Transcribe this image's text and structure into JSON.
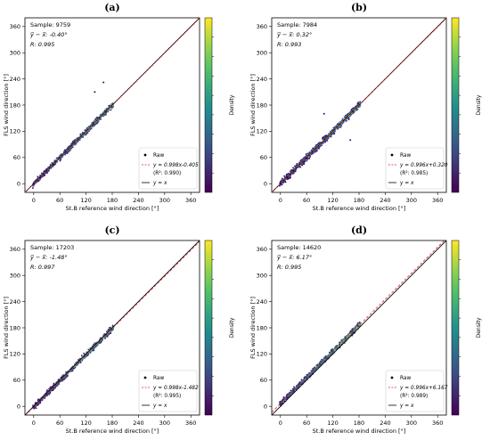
{
  "chart_data": [
    {
      "panel": "(a)",
      "type": "scatter",
      "annotations": {
        "sample": "Sample: 9759",
        "mean_diff": "y̅ − x̅: -0.40°",
        "r": "R: 0.995"
      },
      "xlabel": "St.B reference wind direction [°]",
      "ylabel": "FLS wind direction [°]",
      "colorbar_label": "Density",
      "xlim": [
        -20,
        380
      ],
      "ylim": [
        -20,
        380
      ],
      "ticks": [
        0,
        60,
        120,
        180,
        240,
        300,
        360
      ],
      "fit": {
        "slope": 0.998,
        "intercept": -0.405
      },
      "legend": [
        "Raw",
        "y = 0.998x-0.405",
        "(R²: 0.990)",
        "y = x"
      ],
      "colormap": "viridis",
      "points": [
        [
          0,
          0
        ],
        [
          15,
          14
        ],
        [
          30,
          31
        ],
        [
          45,
          44
        ],
        [
          60,
          60
        ],
        [
          75,
          74
        ],
        [
          90,
          91
        ],
        [
          105,
          104
        ],
        [
          120,
          120
        ],
        [
          135,
          134
        ],
        [
          150,
          151
        ],
        [
          165,
          164
        ],
        [
          178,
          177
        ],
        [
          140,
          210
        ],
        [
          160,
          232
        ]
      ]
    },
    {
      "panel": "(b)",
      "type": "scatter",
      "annotations": {
        "sample": "Sample: 7984",
        "mean_diff": "y̅ − x̅: 0.32°",
        "r": "R: 0.993"
      },
      "xlabel": "St.B reference wind direction [°]",
      "ylabel": "FLS wind direction [°]",
      "colorbar_label": "Density",
      "xlim": [
        -20,
        380
      ],
      "ylim": [
        -20,
        380
      ],
      "ticks": [
        0,
        60,
        120,
        180,
        240,
        300,
        360
      ],
      "fit": {
        "slope": 0.996,
        "intercept": 0.32
      },
      "legend": [
        "Raw",
        "y = 0.996x+0.320",
        "(R²: 0.985)",
        "y = x"
      ],
      "colormap": "viridis",
      "points": [
        [
          0,
          1
        ],
        [
          15,
          15
        ],
        [
          30,
          30
        ],
        [
          45,
          46
        ],
        [
          60,
          60
        ],
        [
          75,
          75
        ],
        [
          90,
          90
        ],
        [
          105,
          106
        ],
        [
          120,
          120
        ],
        [
          135,
          135
        ],
        [
          150,
          150
        ],
        [
          165,
          165
        ],
        [
          178,
          178
        ],
        [
          100,
          160
        ],
        [
          160,
          100
        ]
      ]
    },
    {
      "panel": "(c)",
      "type": "scatter",
      "annotations": {
        "sample": "Sample: 17203",
        "mean_diff": "y̅ − x̅: -1.48°",
        "r": "R: 0.997"
      },
      "xlabel": "St.B reference wind direction [°]",
      "ylabel": "FLS wind direction [°]",
      "colorbar_label": "Density",
      "xlim": [
        -20,
        380
      ],
      "ylim": [
        -20,
        380
      ],
      "ticks": [
        0,
        60,
        120,
        180,
        240,
        300,
        360
      ],
      "fit": {
        "slope": 0.998,
        "intercept": -1.482
      },
      "legend": [
        "Raw",
        "y = 0.998x-1.482",
        "(R²: 0.995)",
        "y = x"
      ],
      "colormap": "viridis",
      "points": [
        [
          0,
          -1
        ],
        [
          15,
          13
        ],
        [
          30,
          28
        ],
        [
          45,
          44
        ],
        [
          60,
          58
        ],
        [
          75,
          73
        ],
        [
          90,
          88
        ],
        [
          105,
          104
        ],
        [
          120,
          118
        ],
        [
          135,
          133
        ],
        [
          150,
          148
        ],
        [
          165,
          164
        ],
        [
          178,
          176
        ]
      ]
    },
    {
      "panel": "(d)",
      "type": "scatter",
      "annotations": {
        "sample": "Sample: 14620",
        "mean_diff": "y̅ − x̅: 6.17°",
        "r": "R: 0.995"
      },
      "xlabel": "St.B reference wind direction [°]",
      "ylabel": "FLS wind direction [°]",
      "colorbar_label": "Density",
      "xlim": [
        -20,
        380
      ],
      "ylim": [
        -20,
        380
      ],
      "ticks": [
        0,
        60,
        120,
        180,
        240,
        300,
        360
      ],
      "fit": {
        "slope": 0.996,
        "intercept": 6.167
      },
      "legend": [
        "Raw",
        "y = 0.996x+6.167",
        "(R²: 0.989)",
        "y = x"
      ],
      "colormap": "viridis",
      "points": [
        [
          0,
          6
        ],
        [
          15,
          21
        ],
        [
          30,
          36
        ],
        [
          45,
          51
        ],
        [
          60,
          66
        ],
        [
          75,
          81
        ],
        [
          90,
          96
        ],
        [
          105,
          111
        ],
        [
          120,
          126
        ],
        [
          135,
          141
        ],
        [
          150,
          156
        ],
        [
          165,
          171
        ],
        [
          178,
          184
        ]
      ]
    }
  ]
}
